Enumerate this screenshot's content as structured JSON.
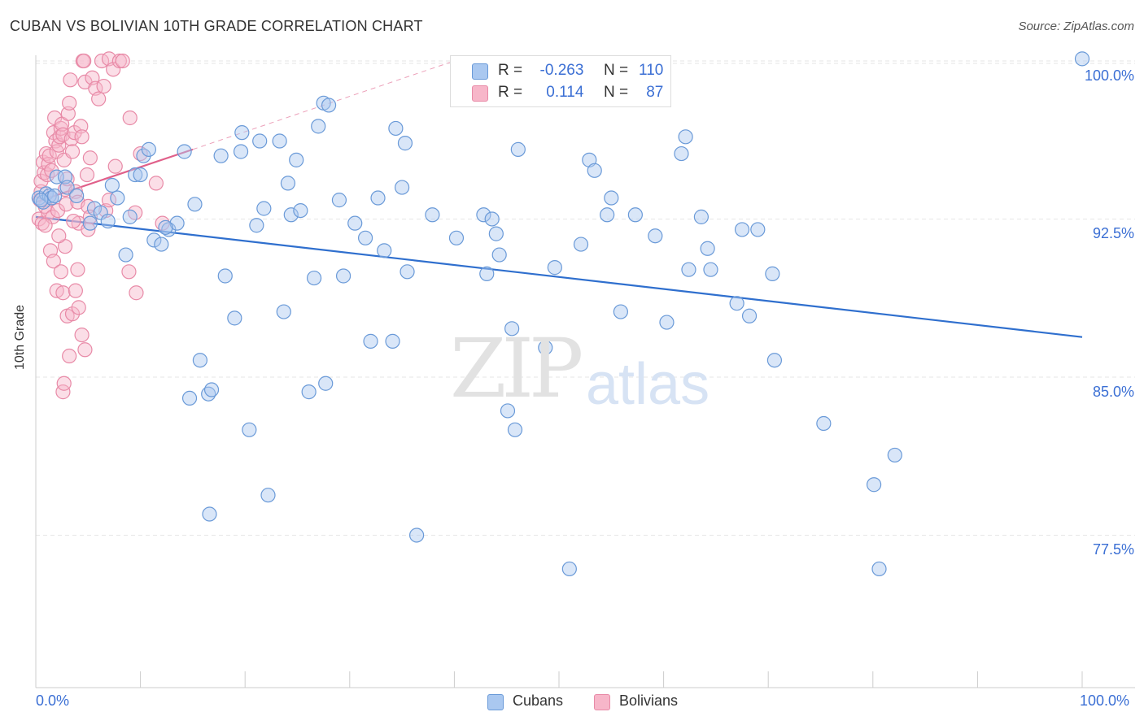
{
  "header": {
    "title": "CUBAN VS BOLIVIAN 10TH GRADE CORRELATION CHART",
    "source": "Source: ZipAtlas.com"
  },
  "watermark": {
    "zip": "ZIP",
    "atlas": "atlas"
  },
  "legend": {
    "rows": [
      {
        "r_label": "R =",
        "r_value": "-0.263",
        "n_label": "N =",
        "n_value": "110"
      },
      {
        "r_label": "R =",
        "r_value": "0.114",
        "n_label": "N =",
        "n_value": "87"
      }
    ]
  },
  "bottom_legend": {
    "cubans": "Cubans",
    "bolivians": "Bolivians"
  },
  "colors": {
    "cubans_fill": "#aac8f0",
    "cubans_stroke": "#6a9ad8",
    "cubans_line": "#2f6fce",
    "bolivians_fill": "#f7b6c9",
    "bolivians_stroke": "#e88aa7",
    "bolivians_line": "#e0608a",
    "grid": "#e6e6e6",
    "tick_text": "#3b6fd4"
  },
  "chart_data": {
    "type": "scatter",
    "title": "CUBAN VS BOLIVIAN 10TH GRADE CORRELATION CHART",
    "xlabel": "",
    "ylabel": "10th Grade",
    "x_tick_labels": [
      "0.0%",
      "100.0%"
    ],
    "y_tick_labels": [
      "100.0%",
      "92.5%",
      "85.0%",
      "77.5%"
    ],
    "y_ticks": [
      100.0,
      92.5,
      85.0,
      77.5
    ],
    "xlim": [
      0,
      100
    ],
    "ylim": [
      70.5,
      100.5
    ],
    "grid": true,
    "legend_position": "top-center",
    "series": [
      {
        "name": "Cubans",
        "r": -0.263,
        "n": 110,
        "trend": {
          "x": [
            0,
            100
          ],
          "y": [
            92.6,
            86.9
          ]
        },
        "points": [
          [
            0.3,
            93.5
          ],
          [
            0.7,
            93.3
          ],
          [
            1.0,
            93.7
          ],
          [
            1.3,
            93.6
          ],
          [
            1.5,
            93.5
          ],
          [
            2.0,
            94.5
          ],
          [
            2.8,
            94.5
          ],
          [
            3.0,
            94.0
          ],
          [
            3.9,
            93.6
          ],
          [
            5.2,
            92.3
          ],
          [
            5.6,
            93.0
          ],
          [
            6.2,
            92.8
          ],
          [
            6.9,
            92.4
          ],
          [
            7.3,
            94.1
          ],
          [
            7.8,
            93.5
          ],
          [
            8.6,
            90.8
          ],
          [
            9.0,
            92.6
          ],
          [
            9.5,
            94.6
          ],
          [
            10.0,
            94.6
          ],
          [
            10.3,
            95.5
          ],
          [
            10.8,
            95.8
          ],
          [
            11.3,
            91.5
          ],
          [
            12.0,
            91.3
          ],
          [
            12.7,
            92.0
          ],
          [
            13.5,
            92.3
          ],
          [
            14.2,
            95.7
          ],
          [
            15.2,
            93.2
          ],
          [
            15.7,
            85.8
          ],
          [
            14.7,
            84.0
          ],
          [
            16.5,
            84.2
          ],
          [
            16.8,
            84.4
          ],
          [
            16.6,
            78.5
          ],
          [
            17.7,
            95.5
          ],
          [
            18.1,
            89.8
          ],
          [
            19.0,
            87.8
          ],
          [
            19.6,
            95.7
          ],
          [
            19.7,
            96.6
          ],
          [
            20.4,
            82.5
          ],
          [
            21.1,
            92.2
          ],
          [
            21.4,
            96.2
          ],
          [
            21.8,
            93.0
          ],
          [
            22.2,
            79.4
          ],
          [
            23.3,
            96.2
          ],
          [
            23.7,
            88.1
          ],
          [
            24.1,
            94.2
          ],
          [
            24.4,
            92.7
          ],
          [
            24.9,
            95.3
          ],
          [
            25.3,
            92.9
          ],
          [
            26.1,
            84.3
          ],
          [
            26.6,
            89.7
          ],
          [
            27.0,
            96.9
          ],
          [
            27.5,
            98.0
          ],
          [
            28.0,
            97.9
          ],
          [
            27.7,
            84.7
          ],
          [
            29.0,
            93.4
          ],
          [
            29.4,
            89.8
          ],
          [
            30.5,
            92.3
          ],
          [
            31.5,
            91.6
          ],
          [
            32.0,
            86.7
          ],
          [
            32.7,
            93.5
          ],
          [
            33.3,
            91.0
          ],
          [
            34.1,
            86.7
          ],
          [
            34.4,
            96.8
          ],
          [
            35.0,
            94.0
          ],
          [
            35.3,
            96.1
          ],
          [
            35.5,
            90.0
          ],
          [
            36.4,
            77.5
          ],
          [
            37.9,
            92.7
          ],
          [
            40.2,
            91.6
          ],
          [
            42.8,
            92.7
          ],
          [
            43.1,
            89.9
          ],
          [
            43.6,
            92.5
          ],
          [
            44.0,
            91.8
          ],
          [
            44.3,
            90.8
          ],
          [
            45.1,
            83.4
          ],
          [
            45.5,
            87.3
          ],
          [
            45.8,
            82.5
          ],
          [
            46.1,
            95.8
          ],
          [
            48.7,
            86.4
          ],
          [
            49.6,
            90.2
          ],
          [
            51.0,
            75.9
          ],
          [
            52.1,
            91.3
          ],
          [
            52.9,
            95.3
          ],
          [
            53.4,
            94.8
          ],
          [
            54.6,
            92.7
          ],
          [
            55.0,
            93.5
          ],
          [
            55.9,
            88.1
          ],
          [
            57.3,
            92.7
          ],
          [
            59.2,
            91.7
          ],
          [
            60.3,
            87.6
          ],
          [
            61.7,
            95.6
          ],
          [
            62.1,
            96.4
          ],
          [
            62.4,
            90.1
          ],
          [
            63.6,
            92.6
          ],
          [
            64.2,
            91.1
          ],
          [
            64.5,
            90.1
          ],
          [
            67.0,
            88.5
          ],
          [
            67.5,
            92.0
          ],
          [
            68.2,
            87.9
          ],
          [
            69.0,
            92.0
          ],
          [
            70.4,
            89.9
          ],
          [
            70.6,
            85.8
          ],
          [
            75.3,
            82.8
          ],
          [
            80.1,
            79.9
          ],
          [
            80.6,
            75.9
          ],
          [
            82.1,
            81.3
          ],
          [
            100.0,
            100.1
          ],
          [
            0.5,
            93.4
          ],
          [
            1.8,
            93.6
          ],
          [
            12.4,
            92.1
          ]
        ]
      },
      {
        "name": "Bolivians",
        "r": 0.114,
        "n": 87,
        "trend": {
          "x": [
            0,
            15
          ],
          "y": [
            93.3,
            95.8
          ]
        },
        "trend_extension": {
          "x": [
            15,
            40
          ],
          "y": [
            95.8,
            100.0
          ]
        },
        "points": [
          [
            0.3,
            92.5
          ],
          [
            0.4,
            93.4
          ],
          [
            0.5,
            93.8
          ],
          [
            0.5,
            94.3
          ],
          [
            0.6,
            92.3
          ],
          [
            0.7,
            95.2
          ],
          [
            0.8,
            94.7
          ],
          [
            0.9,
            93.1
          ],
          [
            1.0,
            95.6
          ],
          [
            1.1,
            94.6
          ],
          [
            1.2,
            95.1
          ],
          [
            1.2,
            92.8
          ],
          [
            1.3,
            95.5
          ],
          [
            1.5,
            94.8
          ],
          [
            1.6,
            92.6
          ],
          [
            1.7,
            96.6
          ],
          [
            1.8,
            97.3
          ],
          [
            1.9,
            96.2
          ],
          [
            2.0,
            95.7
          ],
          [
            2.1,
            92.9
          ],
          [
            2.2,
            96.0
          ],
          [
            2.3,
            96.4
          ],
          [
            2.4,
            96.8
          ],
          [
            2.5,
            97.0
          ],
          [
            2.6,
            96.5
          ],
          [
            2.7,
            95.3
          ],
          [
            2.8,
            93.9
          ],
          [
            2.9,
            93.2
          ],
          [
            3.0,
            94.4
          ],
          [
            3.1,
            97.5
          ],
          [
            3.2,
            98.0
          ],
          [
            3.3,
            99.1
          ],
          [
            3.4,
            96.3
          ],
          [
            3.5,
            95.7
          ],
          [
            3.7,
            96.6
          ],
          [
            3.8,
            93.8
          ],
          [
            4.0,
            93.3
          ],
          [
            4.1,
            92.3
          ],
          [
            4.3,
            96.9
          ],
          [
            4.4,
            96.4
          ],
          [
            4.5,
            100.0
          ],
          [
            4.6,
            100.0
          ],
          [
            4.7,
            99.0
          ],
          [
            4.9,
            94.6
          ],
          [
            5.0,
            92.0
          ],
          [
            5.2,
            95.4
          ],
          [
            5.4,
            99.2
          ],
          [
            5.7,
            98.7
          ],
          [
            6.0,
            98.2
          ],
          [
            6.3,
            100.0
          ],
          [
            6.5,
            98.8
          ],
          [
            7.0,
            100.1
          ],
          [
            7.4,
            99.6
          ],
          [
            7.6,
            95.0
          ],
          [
            8.0,
            100.0
          ],
          [
            8.3,
            100.0
          ],
          [
            9.0,
            97.3
          ],
          [
            9.5,
            92.8
          ],
          [
            10.0,
            95.6
          ],
          [
            11.5,
            94.2
          ],
          [
            12.1,
            92.3
          ],
          [
            1.4,
            91.0
          ],
          [
            1.7,
            90.5
          ],
          [
            2.0,
            89.1
          ],
          [
            2.4,
            90.0
          ],
          [
            2.6,
            89.0
          ],
          [
            2.8,
            91.2
          ],
          [
            3.0,
            87.9
          ],
          [
            3.2,
            86.0
          ],
          [
            3.5,
            88.0
          ],
          [
            3.8,
            89.1
          ],
          [
            4.1,
            88.3
          ],
          [
            4.4,
            87.0
          ],
          [
            4.7,
            86.3
          ],
          [
            2.6,
            84.3
          ],
          [
            2.7,
            84.7
          ],
          [
            5.0,
            93.1
          ],
          [
            5.2,
            92.6
          ],
          [
            6.7,
            92.9
          ],
          [
            7.0,
            93.4
          ],
          [
            8.9,
            90.0
          ],
          [
            9.6,
            89.0
          ],
          [
            0.9,
            92.2
          ],
          [
            1.5,
            93.5
          ],
          [
            2.2,
            91.7
          ],
          [
            4.0,
            90.1
          ],
          [
            3.6,
            92.4
          ]
        ]
      }
    ]
  }
}
